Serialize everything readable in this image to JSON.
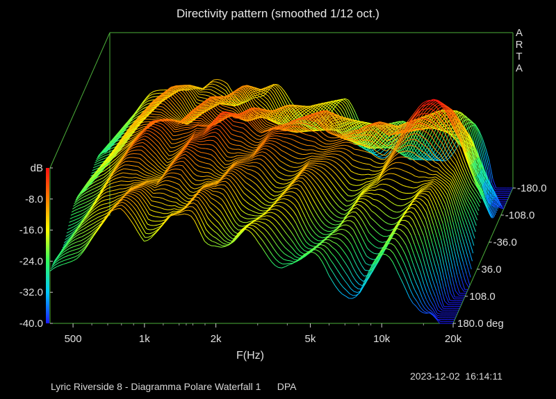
{
  "window": {
    "footer_caption": "Lyric Riverside 8 - Diagramma Polare Waterfall 1      DPA",
    "timestamp": "2023-12-02  16:14:11"
  },
  "chart_data": {
    "type": "waterfall",
    "title": "Directivity pattern (smoothed 1/12 oct.)",
    "watermark": "ARTA",
    "xlabel": "F(Hz)",
    "ylabel": "dB",
    "zlabel": "deg",
    "x_scale": "log",
    "xlim": [
      400,
      20000
    ],
    "ylim": [
      -40,
      0
    ],
    "zlim": [
      -180,
      180
    ],
    "x_ticks": [
      {
        "value": 500,
        "label": "500"
      },
      {
        "value": 1000,
        "label": "1k"
      },
      {
        "value": 2000,
        "label": "2k"
      },
      {
        "value": 5000,
        "label": "5k"
      },
      {
        "value": 10000,
        "label": "10k"
      },
      {
        "value": 20000,
        "label": "20k"
      }
    ],
    "y_ticks": [
      {
        "value": 0,
        "label": "dB"
      },
      {
        "value": -8,
        "label": "-8.0"
      },
      {
        "value": -16,
        "label": "-16.0"
      },
      {
        "value": -24,
        "label": "-24.0"
      },
      {
        "value": -32,
        "label": "-32.0"
      },
      {
        "value": -40,
        "label": "-40.0"
      }
    ],
    "z_ticks": [
      {
        "value": 180,
        "label": "180.0 deg"
      },
      {
        "value": 108,
        "label": "108.0"
      },
      {
        "value": 36,
        "label": "36.0"
      },
      {
        "value": -36,
        "label": "-36.0"
      },
      {
        "value": -108,
        "label": "-108.0"
      },
      {
        "value": -180,
        "label": "-180.0"
      }
    ],
    "slice_step_deg": 5,
    "colorscale": [
      "#1a1aff",
      "#00c8ff",
      "#30ff60",
      "#ffff00",
      "#ff8000",
      "#ff1010"
    ],
    "frame_color": "#4caf3a",
    "on_axis_response": [
      {
        "f": 400,
        "db": -24
      },
      {
        "f": 450,
        "db": -21
      },
      {
        "f": 520,
        "db": -17
      },
      {
        "f": 600,
        "db": -12
      },
      {
        "f": 700,
        "db": -8
      },
      {
        "f": 800,
        "db": -6
      },
      {
        "f": 900,
        "db": -7
      },
      {
        "f": 1000,
        "db": -9
      },
      {
        "f": 1100,
        "db": -7
      },
      {
        "f": 1250,
        "db": -5
      },
      {
        "f": 1400,
        "db": -6
      },
      {
        "f": 1600,
        "db": -4
      },
      {
        "f": 1800,
        "db": -6
      },
      {
        "f": 2000,
        "db": -5
      },
      {
        "f": 2300,
        "db": -7
      },
      {
        "f": 2600,
        "db": -6
      },
      {
        "f": 3000,
        "db": -7
      },
      {
        "f": 3500,
        "db": -6
      },
      {
        "f": 4000,
        "db": -5
      },
      {
        "f": 4500,
        "db": -7
      },
      {
        "f": 5000,
        "db": -8
      },
      {
        "f": 6000,
        "db": -9
      },
      {
        "f": 7000,
        "db": -7
      },
      {
        "f": 8000,
        "db": -8
      },
      {
        "f": 9000,
        "db": -6
      },
      {
        "f": 10000,
        "db": -4
      },
      {
        "f": 11000,
        "db": -2
      },
      {
        "f": 12500,
        "db": -1
      },
      {
        "f": 14000,
        "db": -3
      },
      {
        "f": 16000,
        "db": -9
      },
      {
        "f": 18000,
        "db": -18
      },
      {
        "f": 20000,
        "db": -24
      }
    ]
  }
}
